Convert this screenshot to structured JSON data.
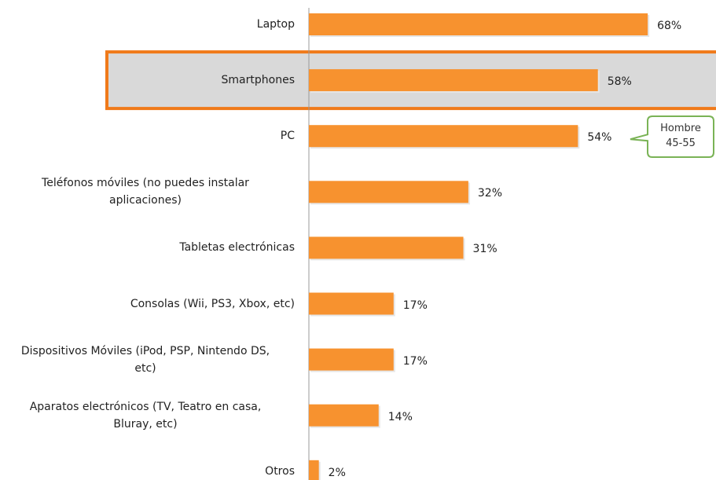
{
  "chart_data": {
    "type": "bar",
    "orientation": "horizontal",
    "categories": [
      "Laptop",
      "Smartphones",
      "PC",
      "Teléfonos móviles (no puedes instalar\naplicaciones)",
      "Tabletas electrónicas",
      "Consolas (Wii,  PS3, Xbox, etc)",
      "Dispositivos Móviles (iPod, PSP, Nintendo DS,\netc)",
      "Aparatos electrónicos (TV, Teatro en casa,\nBluray, etc)",
      "Otros"
    ],
    "values": [
      68,
      58,
      54,
      32,
      31,
      17,
      17,
      14,
      2
    ],
    "value_labels": [
      "68%",
      "58%",
      "54%",
      "32%",
      "31%",
      "17%",
      "17%",
      "14%",
      "2%"
    ],
    "color": "#f7922f",
    "highlight": {
      "category": 1,
      "color": "#f07a1a"
    },
    "annotation": {
      "text": "Hombre\n45-55",
      "category": 2,
      "color": "#7ab356"
    }
  }
}
